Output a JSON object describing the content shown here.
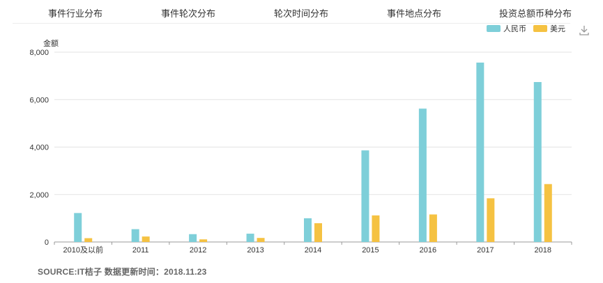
{
  "tabs": [
    {
      "label": "事件行业分布"
    },
    {
      "label": "事件轮次分布"
    },
    {
      "label": "轮次时间分布"
    },
    {
      "label": "事件地点分布"
    },
    {
      "label": "投资总额币种分布"
    }
  ],
  "legend": [
    {
      "label": "人民币",
      "color": "#7ecfd9"
    },
    {
      "label": "美元",
      "color": "#f5c242"
    }
  ],
  "download_icon": "download-icon",
  "source": "SOURCE:IT桔子  数据更新时间：2018.11.23",
  "chart_data": {
    "type": "bar",
    "ylabel": "金额",
    "xlabel": "",
    "categories": [
      "2010及以前",
      "2011",
      "2012",
      "2013",
      "2014",
      "2015",
      "2016",
      "2017",
      "2018"
    ],
    "series": [
      {
        "name": "人民币",
        "color": "#7ecfd9",
        "values": [
          1220,
          540,
          330,
          350,
          1000,
          3860,
          5620,
          7560,
          6740
        ]
      },
      {
        "name": "美元",
        "color": "#f5c242",
        "values": [
          160,
          230,
          110,
          170,
          790,
          1120,
          1160,
          1840,
          2440
        ]
      }
    ],
    "ylim": [
      0,
      8000
    ],
    "yticks": [
      "0",
      "2,000",
      "4,000",
      "6,000",
      "8,000"
    ],
    "ytick_values": [
      0,
      2000,
      4000,
      6000,
      8000
    ],
    "grid": true,
    "legend_position": "top-right"
  }
}
